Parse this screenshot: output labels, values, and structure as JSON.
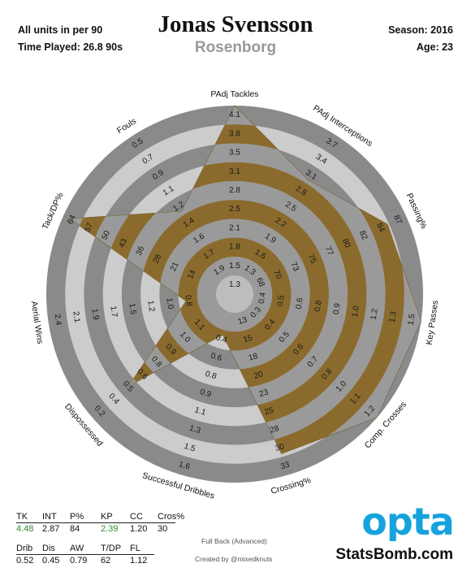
{
  "header": {
    "player_name": "Jonas Svensson",
    "team": "Rosenborg",
    "units_note": "All units in per 90",
    "time_played": "Time Played: 26.8 90s",
    "season": "Season: 2016",
    "age": "Age: 23"
  },
  "colors": {
    "ring_light": "#cccccc",
    "ring_dark": "#8a8a8a",
    "fill_overlap": "#8b6b2d",
    "center": "#bdbdbd"
  },
  "chart_data": {
    "type": "radar",
    "axes": [
      {
        "label": "PAdj Tackles",
        "ticks": [
          "1.3",
          "1.5",
          "1.8",
          "2.1",
          "2.5",
          "2.8",
          "3.1",
          "3.5",
          "3.8",
          "4.1"
        ],
        "value": 4.48,
        "fraction": 1.0
      },
      {
        "label": "PAdj Interceptions",
        "ticks": [
          "1.3",
          "1.6",
          "1.9",
          "2.2",
          "2.5",
          "2.8",
          "3.1",
          "3.4",
          "3.7"
        ],
        "value": 2.87,
        "fraction": 0.69
      },
      {
        "label": "Passing%",
        "ticks": [
          "68",
          "70",
          "73",
          "75",
          "77",
          "80",
          "82",
          "84",
          "87"
        ],
        "value": 84,
        "fraction": 0.88
      },
      {
        "label": "Key Passes",
        "ticks": [
          "0.4",
          "0.5",
          "0.6",
          "0.8",
          "0.9",
          "1.0",
          "1.2",
          "1.3",
          "1.5"
        ],
        "value": 2.39,
        "fraction": 1.0
      },
      {
        "label": "Comp. Crosses",
        "ticks": [
          "0.3",
          "0.4",
          "0.5",
          "0.6",
          "0.7",
          "0.8",
          "1.0",
          "1.1",
          "1.2"
        ],
        "value": 1.2,
        "fraction": 1.0
      },
      {
        "label": "Crossing%",
        "ticks": [
          "13",
          "15",
          "18",
          "20",
          "23",
          "25",
          "28",
          "30",
          "33"
        ],
        "value": 30,
        "fraction": 0.87
      },
      {
        "label": "Successful Dribbles",
        "ticks": [
          "0.4",
          "0.6",
          "0.8",
          "0.9",
          "1.1",
          "1.3",
          "1.5",
          "1.6"
        ],
        "value": 0.52,
        "fraction": 0.14
      },
      {
        "label": "Dispossessed",
        "ticks": [
          "1.1",
          "1.0",
          "0.9",
          "0.8",
          "0.6",
          "0.5",
          "0.4",
          "0.2"
        ],
        "value": 0.45,
        "fraction": 0.72
      },
      {
        "label": "Aerial Wins",
        "ticks": [
          "0.8",
          "1.0",
          "1.2",
          "1.5",
          "1.7",
          "1.9",
          "2.1",
          "2.4"
        ],
        "value": 0.79,
        "fraction": 0.18
      },
      {
        "label": "Tack/DP%",
        "ticks": [
          "14",
          "21",
          "28",
          "36",
          "43",
          "50",
          "57",
          "64"
        ],
        "value": 62,
        "fraction": 0.96
      },
      {
        "label": "Fouls",
        "ticks": [
          "1.9",
          "1.7",
          "1.6",
          "1.4",
          "1.2",
          "1.1",
          "0.9",
          "0.7",
          "0.5"
        ],
        "value": 1.12,
        "fraction": 0.47
      }
    ]
  },
  "stats_table": {
    "row1_headers": [
      "TK",
      "INT",
      "P%",
      "KP",
      "CC",
      "Cros%"
    ],
    "row1_values": [
      "4.48",
      "2.87",
      "84",
      "2.39",
      "1.20",
      "30"
    ],
    "row1_highlight": [
      true,
      false,
      false,
      true,
      false,
      false
    ],
    "row2_headers": [
      "Drib",
      "Dis",
      "AW",
      "T/DP",
      "FL"
    ],
    "row2_values": [
      "0.52",
      "0.45",
      "0.79",
      "62",
      "1.12"
    ]
  },
  "footer": {
    "position": "Full Back (Advanced)",
    "credit": "Created by @mixedknuts",
    "logo_text": "opta",
    "brand": "StatsBomb.com"
  }
}
